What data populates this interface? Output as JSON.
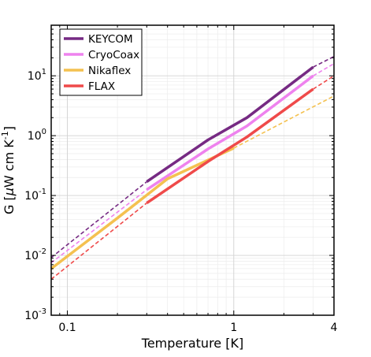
{
  "chart_data": {
    "type": "line",
    "xlabel": "Temperature [K]",
    "ylabel_prefix": "G [",
    "ylabel_mu": "μ",
    "ylabel_mid": "W cm K",
    "ylabel_exp": "-1",
    "ylabel_suffix": "]",
    "x_scale": "log",
    "y_scale": "log",
    "xlim": [
      0.08,
      4
    ],
    "ylim": [
      0.001,
      70
    ],
    "x_ticks": [
      {
        "value": 0.1,
        "label": "0.1"
      },
      {
        "value": 1,
        "label": "1"
      },
      {
        "value": 4,
        "label": "4"
      }
    ],
    "y_ticks": [
      {
        "value": 0.001,
        "base": "10",
        "exp": "-3"
      },
      {
        "value": 0.01,
        "base": "10",
        "exp": "-2"
      },
      {
        "value": 0.1,
        "base": "10",
        "exp": "-1"
      },
      {
        "value": 1,
        "base": "10",
        "exp": "0"
      },
      {
        "value": 10,
        "base": "10",
        "exp": "1"
      }
    ],
    "grid": true,
    "legend_position": "top-left",
    "series": [
      {
        "name": "KEYCOM",
        "color": "#762a83",
        "measured": [
          [
            0.3,
            0.17
          ],
          [
            0.7,
            0.85
          ],
          [
            1.2,
            2.0
          ],
          [
            3.0,
            14.0
          ]
        ],
        "extrapolated": [
          [
            0.08,
            0.0092
          ],
          [
            0.3,
            0.17
          ]
        ],
        "extrapolated_high": [
          [
            3.0,
            14.0
          ],
          [
            4.0,
            21.0
          ]
        ]
      },
      {
        "name": "CryoCoax",
        "color": "#ee82ee",
        "measured": [
          [
            0.3,
            0.125
          ],
          [
            0.7,
            0.6
          ],
          [
            1.2,
            1.45
          ],
          [
            3.0,
            10.0
          ]
        ],
        "extrapolated": [
          [
            0.08,
            0.0075
          ],
          [
            0.3,
            0.125
          ]
        ],
        "extrapolated_high": [
          [
            3.0,
            10.0
          ],
          [
            4.0,
            16.0
          ]
        ]
      },
      {
        "name": "Nikaflex",
        "color": "#f4c150",
        "measured": [
          [
            0.08,
            0.006
          ],
          [
            0.2,
            0.042
          ],
          [
            0.4,
            0.19
          ],
          [
            1.0,
            0.62
          ]
        ],
        "extrapolated_high": [
          [
            1.0,
            0.62
          ],
          [
            4.0,
            4.6
          ]
        ]
      },
      {
        "name": "FLAX",
        "color": "#ef4a4a",
        "measured": [
          [
            0.3,
            0.075
          ],
          [
            0.7,
            0.37
          ],
          [
            1.2,
            0.95
          ],
          [
            3.0,
            6.0
          ]
        ],
        "extrapolated": [
          [
            0.08,
            0.004
          ],
          [
            0.3,
            0.075
          ]
        ],
        "extrapolated_high": [
          [
            3.0,
            6.0
          ],
          [
            4.0,
            10.0
          ]
        ]
      }
    ]
  }
}
